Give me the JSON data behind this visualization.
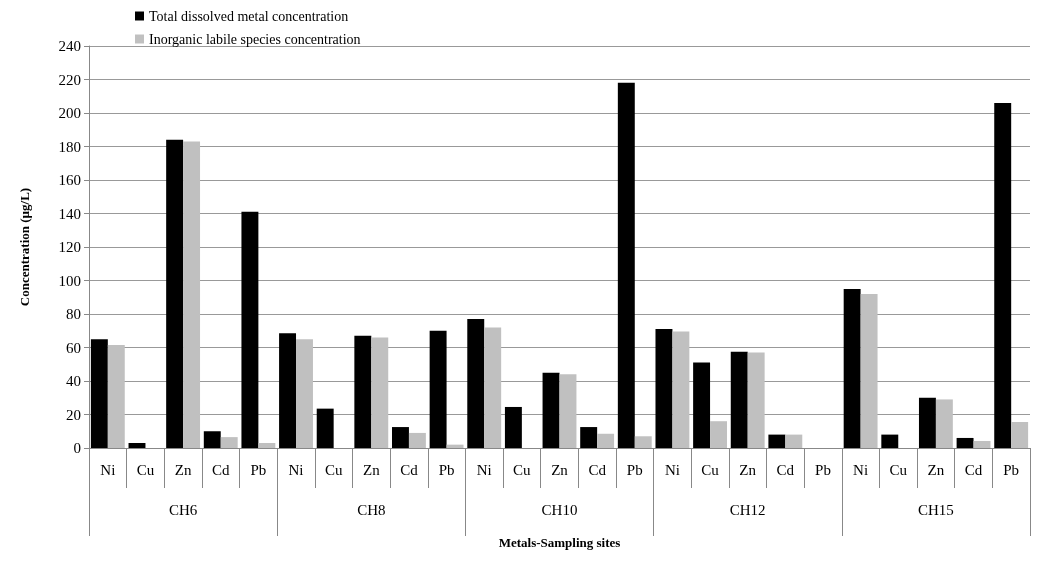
{
  "chart_data": {
    "type": "bar",
    "xlabel": "Metals-Sampling sites",
    "ylabel": "Concentration (µg/L)",
    "categories": [
      "Ni",
      "Cu",
      "Zn",
      "Cd",
      "Pb",
      "Ni",
      "Cu",
      "Zn",
      "Cd",
      "Pb",
      "Ni",
      "Cu",
      "Zn",
      "Cd",
      "Pb",
      "Ni",
      "Cu",
      "Zn",
      "Cd",
      "Pb",
      "Ni",
      "Cu",
      "Zn",
      "Cd",
      "Pb"
    ],
    "series": [
      {
        "name": "Total dissolved metal concentration",
        "color": "#000000",
        "values": [
          65,
          3,
          184,
          10,
          141,
          68.5,
          23.5,
          67,
          12.5,
          70,
          77,
          24.5,
          45,
          12.5,
          218,
          71,
          51,
          57.5,
          8,
          null,
          95,
          8,
          30,
          6,
          206
        ]
      },
      {
        "name": "Inorganic labile species concentration",
        "color": "#c0c0c0",
        "values": [
          61.5,
          null,
          183,
          6.5,
          3,
          65,
          null,
          66,
          9,
          2,
          72,
          null,
          44,
          8.5,
          7,
          69.5,
          16,
          57,
          8,
          null,
          92,
          null,
          29,
          4.2,
          15.5
        ]
      }
    ],
    "annotations": [
      "CH6",
      "CH8",
      "CH10",
      "CH12",
      "CH15"
    ],
    "ylim": [
      0,
      240
    ],
    "yticks": [
      0,
      20,
      40,
      60,
      80,
      100,
      120,
      140,
      160,
      180,
      200,
      220,
      240
    ],
    "grid": "y",
    "legend": "top left"
  }
}
